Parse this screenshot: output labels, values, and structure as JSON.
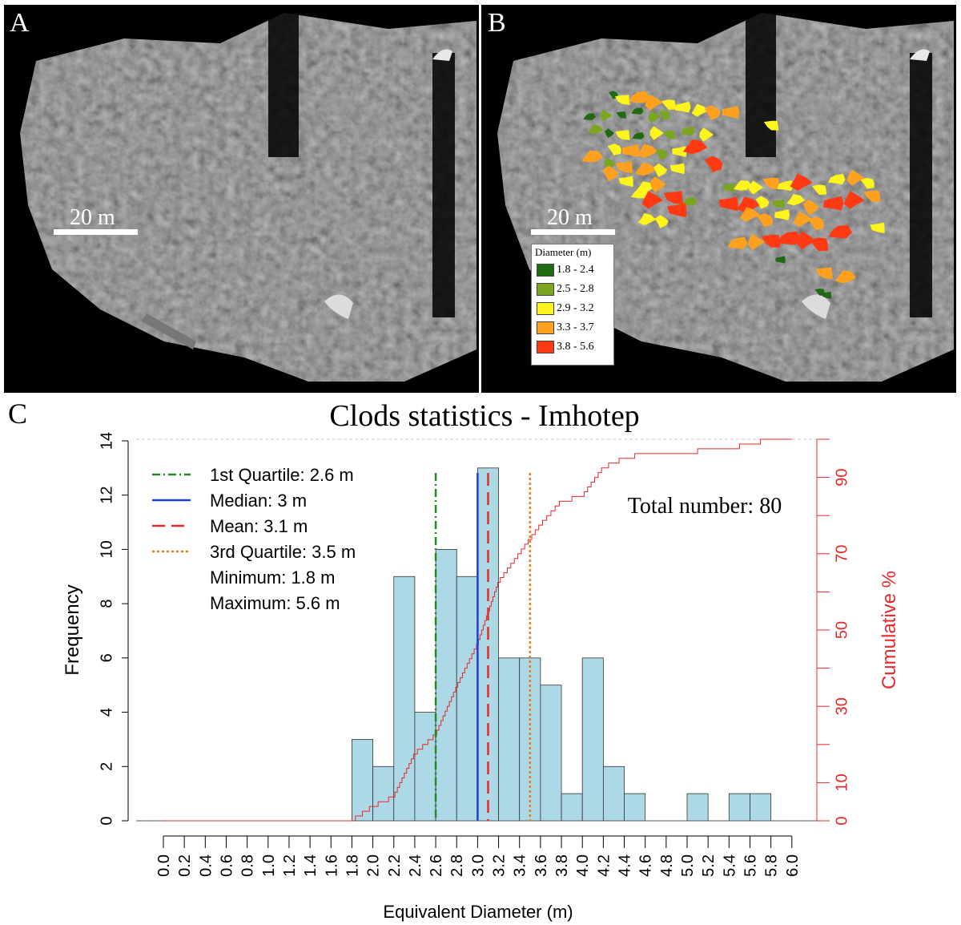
{
  "panels": {
    "a": {
      "label": "A",
      "scale_text": "20 m"
    },
    "b": {
      "label": "B",
      "scale_text": "20 m",
      "legend": {
        "title": "Diameter (m)",
        "items": [
          {
            "label": "1.8 - 2.4",
            "color": "#1f6b12"
          },
          {
            "label": "2.5 - 2.8",
            "color": "#7aa51f"
          },
          {
            "label": "2.9 - 3.2",
            "color": "#fff31c"
          },
          {
            "label": "3.3 - 3.7",
            "color": "#ffa01e"
          },
          {
            "label": "3.8 - 5.6",
            "color": "#ff3a12"
          }
        ]
      }
    },
    "c": {
      "label": "C"
    }
  },
  "chart_data": {
    "type": "bar",
    "title": "Clods statistics - Imhotep",
    "xlabel": "Equivalent Diameter (m)",
    "ylabel": "Frequency",
    "ylabel_right": "Cumulative %",
    "xlim": [
      0,
      6
    ],
    "ylim": [
      0,
      14
    ],
    "ylim_right": [
      0,
      100
    ],
    "bin_width": 0.2,
    "bins": [
      1.8,
      2.0,
      2.2,
      2.4,
      2.6,
      2.8,
      3.0,
      3.2,
      3.4,
      3.6,
      3.8,
      4.0,
      4.2,
      4.4,
      4.6,
      4.8,
      5.0,
      5.2,
      5.4,
      5.6
    ],
    "values": [
      3,
      2,
      9,
      4,
      10,
      9,
      13,
      6,
      6,
      5,
      1,
      6,
      2,
      1,
      0,
      0,
      1,
      0,
      1,
      1
    ],
    "x_ticks": [
      "0.0",
      "0.2",
      "0.4",
      "0.6",
      "0.8",
      "1.0",
      "1.2",
      "1.4",
      "1.6",
      "1.8",
      "2.0",
      "2.2",
      "2.4",
      "2.6",
      "2.8",
      "3.0",
      "3.2",
      "3.4",
      "3.6",
      "3.8",
      "4.0",
      "4.2",
      "4.4",
      "4.6",
      "4.8",
      "5.0",
      "5.2",
      "5.4",
      "5.6",
      "5.8",
      "6.0"
    ],
    "y_ticks": [
      0,
      2,
      4,
      6,
      8,
      10,
      12,
      14
    ],
    "y_ticks_right": [
      0,
      10,
      30,
      50,
      70,
      90
    ],
    "total_number_text": "Total number: 80",
    "stats": [
      {
        "label": "1st Quartile: 2.6 m",
        "value": 2.6,
        "color": "#228b22",
        "dash": "10 4 2 4"
      },
      {
        "label": "Median: 3 m",
        "value": 3.0,
        "color": "#1b3fe0",
        "dash": ""
      },
      {
        "label": "Mean: 3.1 m",
        "value": 3.1,
        "color": "#e8282a",
        "dash": "16 8"
      },
      {
        "label": "3rd Quartile: 3.5 m",
        "value": 3.5,
        "color": "#ee7a1c",
        "dash": "3 3"
      }
    ],
    "extra_stats": [
      "Minimum: 1.8 m",
      "Maximum: 5.6 m"
    ],
    "bar_color": "#add8e6",
    "cumulative_color": "#e8282a"
  }
}
